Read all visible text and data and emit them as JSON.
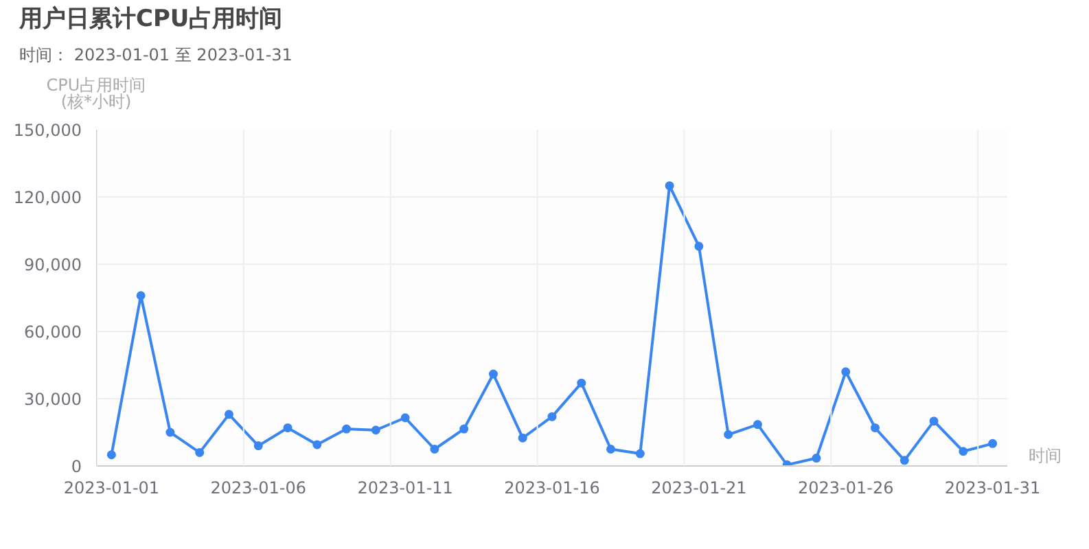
{
  "chart_data": {
    "type": "line",
    "title": "用户日累计CPU占用时间",
    "subtitle": "时间： 2023-01-01 至 2023-01-31",
    "ylabel": "CPU占用时间\n(核*小时)",
    "xlabel": "时间",
    "categories": [
      "2023-01-01",
      null,
      null,
      null,
      null,
      "2023-01-06",
      null,
      null,
      null,
      null,
      "2023-01-11",
      null,
      null,
      null,
      null,
      "2023-01-16",
      null,
      null,
      null,
      null,
      "2023-01-21",
      null,
      null,
      null,
      null,
      "2023-01-26",
      null,
      null,
      null,
      null,
      "2023-01-31"
    ],
    "series": [
      {
        "color": "#3a86f0",
        "values": [
          5000,
          76000,
          15000,
          6000,
          23000,
          9000,
          17000,
          9500,
          16500,
          16000,
          21500,
          7500,
          16500,
          41000,
          12500,
          22000,
          37000,
          7500,
          5500,
          125000,
          98000,
          14000,
          18500,
          500,
          3500,
          42000,
          17000,
          2500,
          20000,
          6500,
          10000
        ]
      }
    ],
    "ylim": [
      0,
      150000
    ],
    "yticks": [
      0,
      {
        "value": 30000,
        "label": "30,000"
      },
      {
        "value": 60000,
        "label": "60,000"
      },
      {
        "value": 90000,
        "label": "90,000"
      },
      {
        "value": 120000,
        "label": "120,000"
      },
      {
        "value": 150000,
        "label": "150,000"
      }
    ],
    "grid": true,
    "marker": "circle",
    "line_style": "solid"
  }
}
